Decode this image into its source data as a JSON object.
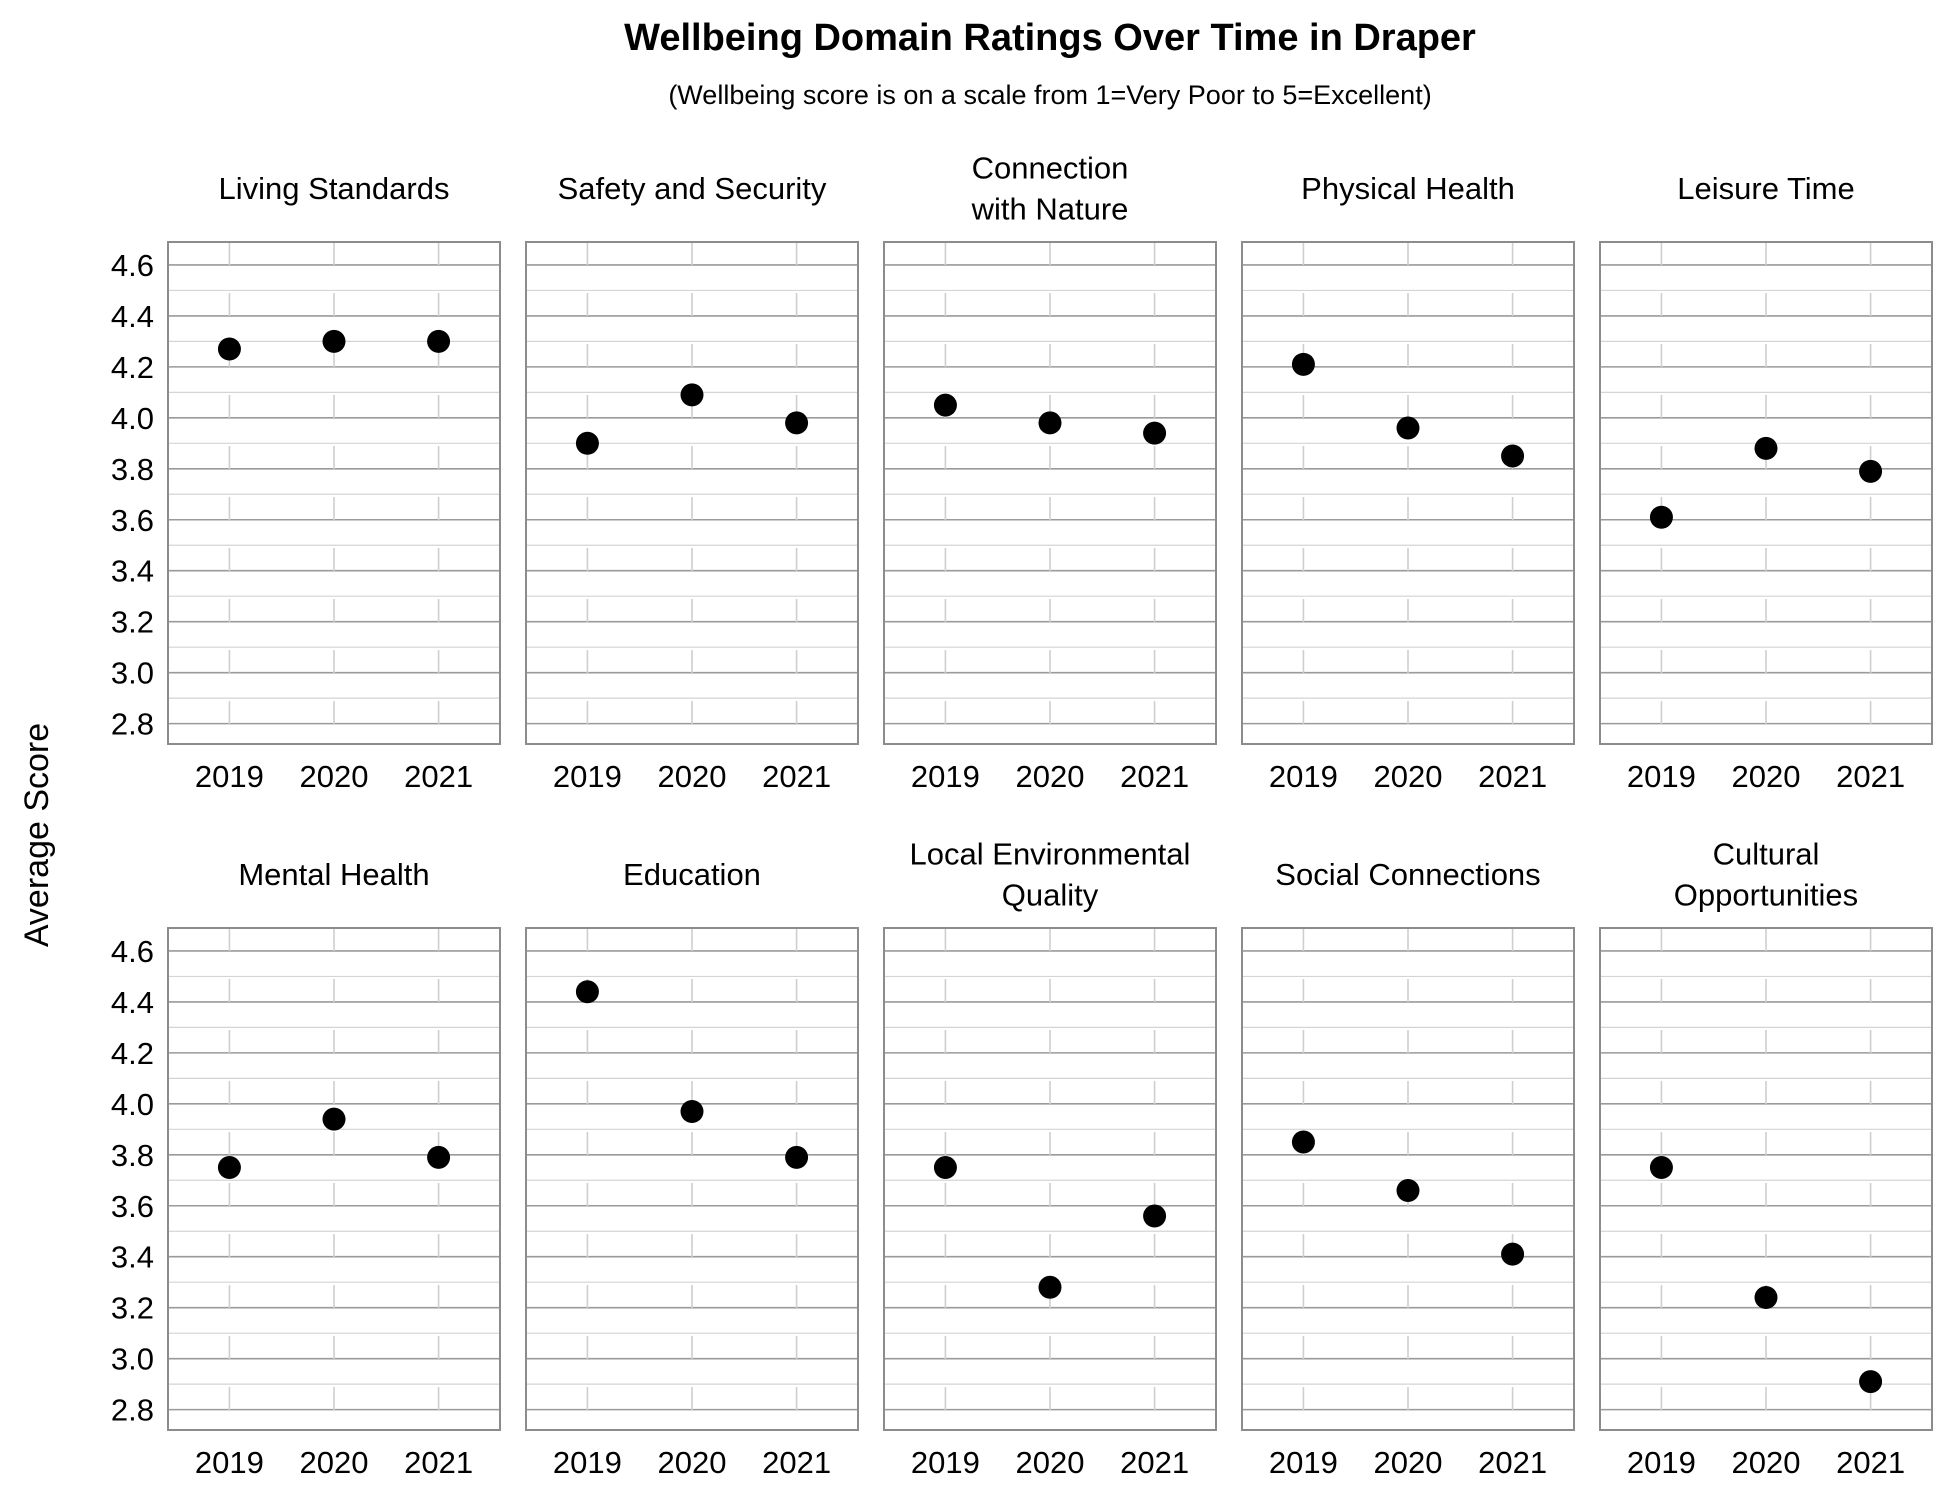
{
  "chart_data": {
    "type": "scatter",
    "title": "Wellbeing Domain Ratings Over Time in Draper",
    "subtitle": "(Wellbeing score is on a scale from 1=Very Poor to 5=Excellent)",
    "ylabel": "Average Score",
    "xlabel": "",
    "categories": [
      "2019",
      "2020",
      "2021"
    ],
    "ylim": [
      2.72,
      4.69
    ],
    "yticks": [
      "2.8",
      "3.0",
      "3.2",
      "3.4",
      "3.6",
      "3.8",
      "4.0",
      "4.2",
      "4.4",
      "4.6"
    ],
    "grid": true,
    "marker_color": "#000000",
    "panels": [
      {
        "title_lines": [
          "Living Standards"
        ],
        "values": [
          4.27,
          4.3,
          4.3
        ]
      },
      {
        "title_lines": [
          "Safety and Security"
        ],
        "values": [
          3.9,
          4.09,
          3.98
        ]
      },
      {
        "title_lines": [
          "Connection",
          "with Nature"
        ],
        "values": [
          4.05,
          3.98,
          3.94
        ]
      },
      {
        "title_lines": [
          "Physical Health"
        ],
        "values": [
          4.21,
          3.96,
          3.85
        ]
      },
      {
        "title_lines": [
          "Leisure Time"
        ],
        "values": [
          3.61,
          3.88,
          3.79
        ]
      },
      {
        "title_lines": [
          "Mental Health"
        ],
        "values": [
          3.75,
          3.94,
          3.79
        ]
      },
      {
        "title_lines": [
          "Education"
        ],
        "values": [
          4.44,
          3.97,
          3.79
        ]
      },
      {
        "title_lines": [
          "Local Environmental",
          "Quality"
        ],
        "values": [
          3.75,
          3.28,
          3.56
        ]
      },
      {
        "title_lines": [
          "Social Connections"
        ],
        "values": [
          3.85,
          3.66,
          3.41
        ]
      },
      {
        "title_lines": [
          "Cultural",
          "Opportunities"
        ],
        "values": [
          3.75,
          3.24,
          2.91
        ]
      }
    ]
  }
}
